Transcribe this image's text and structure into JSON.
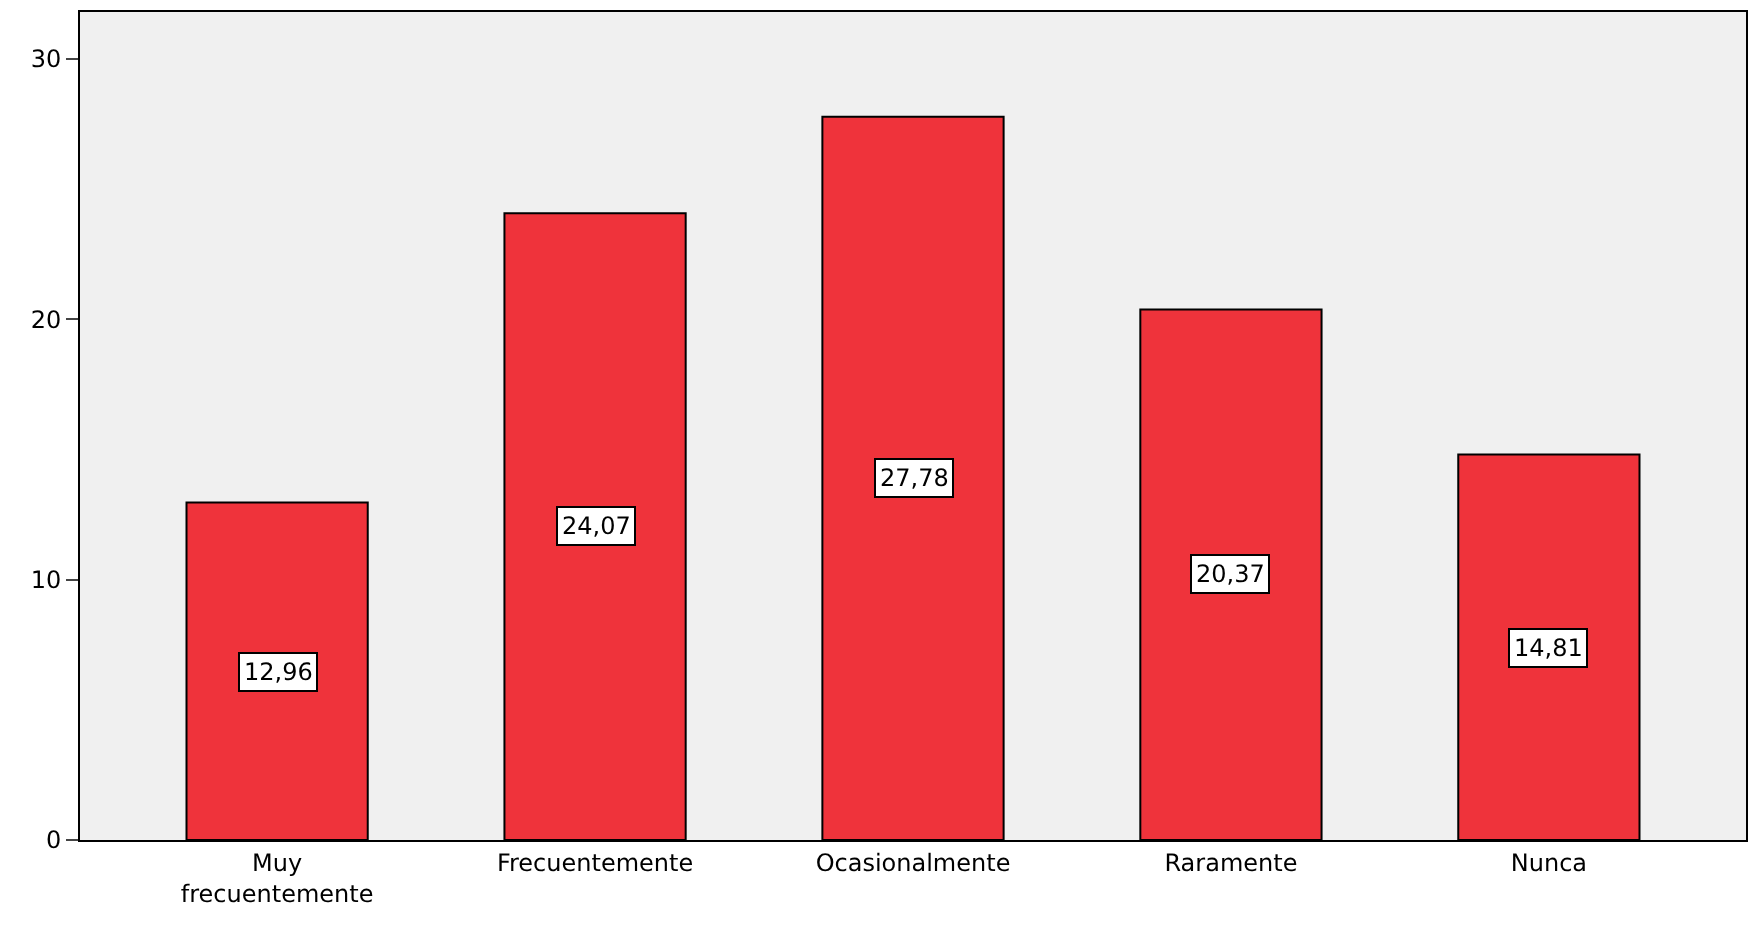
{
  "chart_data": {
    "type": "bar",
    "categories": [
      "Muy frecuentemente",
      "Frecuentemente",
      "Ocasionalmente",
      "Raramente",
      "Nunca"
    ],
    "values": [
      12.96,
      24.07,
      27.78,
      20.37,
      14.81
    ],
    "value_labels": [
      "12,96",
      "24,07",
      "27,78",
      "20,37",
      "14,81"
    ],
    "color": "#ef333b",
    "ylim": [
      0,
      31.8
    ],
    "yticks": [
      0,
      10,
      20,
      30
    ],
    "grid": false,
    "legend": false
  }
}
